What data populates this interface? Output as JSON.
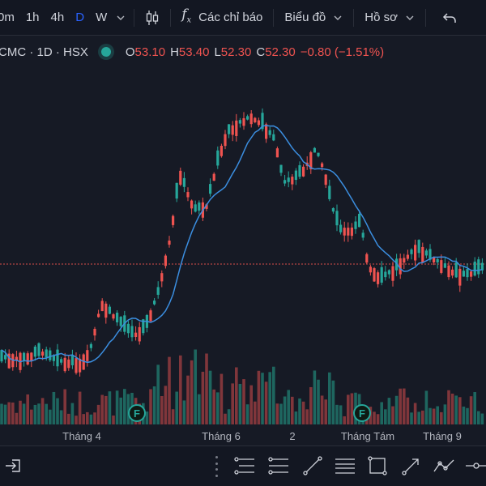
{
  "toolbar": {
    "intervals": [
      "0m",
      "1h",
      "4h",
      "D",
      "W"
    ],
    "active_interval": "D",
    "indicators_label": "Các chỉ báo",
    "chart_label": "Biểu đồ",
    "profile_label": "Hồ sơ"
  },
  "legend": {
    "symbol": "CMC · 1D · HSX",
    "open_key": "O",
    "open_value": "53.10",
    "high_key": "H",
    "high_value": "53.40",
    "low_key": "L",
    "low_value": "52.30",
    "close_key": "C",
    "close_value": "52.30",
    "change": "−0.80 (−1.51%)"
  },
  "earnings_marker": "F",
  "x_axis": [
    "Tháng 4",
    "Tháng 6",
    "2",
    "Tháng Tám",
    "Tháng 9"
  ],
  "colors": {
    "up": "#26a69a",
    "down": "#ef5350",
    "ma": "#3b8ee0",
    "background": "#161a25"
  },
  "icons": [
    "interval-dropdown-icon",
    "candlestick-icon",
    "fx-icon",
    "undo-icon",
    "import-icon",
    "grip-icon",
    "fib-tool-icon",
    "parallel-channel-icon",
    "trend-line-icon",
    "horizontal-lines-icon",
    "rectangle-icon",
    "arrow-tool-icon",
    "path-tool-icon",
    "measure-icon"
  ]
}
